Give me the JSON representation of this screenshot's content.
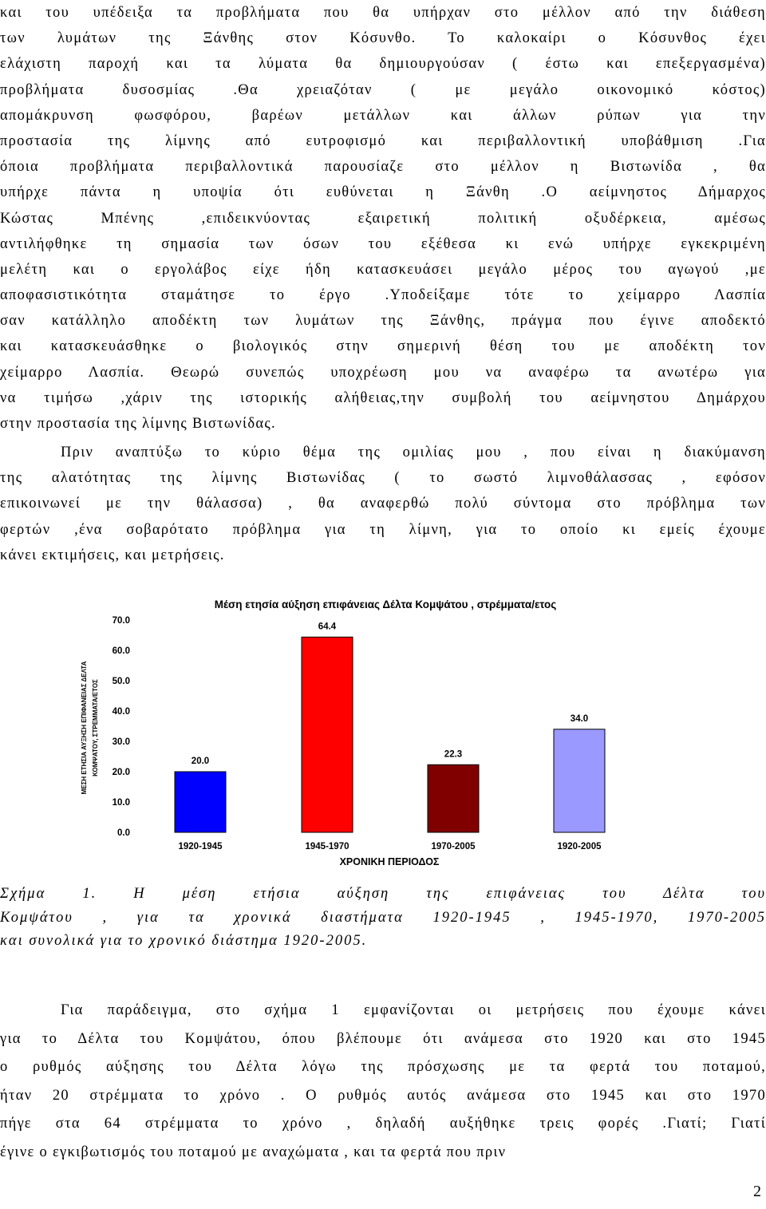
{
  "paragraph1": {
    "lines": [
      "και του υπέδειξα τα προβλήματα που θα υπήρχαν στο μέλλον  από την διάθεση",
      "των λυμάτων της Ξάνθης   στον Κόσυνθο. Το καλοκαίρι ο Κόσυνθος έχει",
      "ελάχιστη  παροχή και τα λύματα θα δημιουργούσαν ( έστω και επεξεργασμένα)",
      "προβλήματα δυσοσμίας .Θα χρειαζόταν   ( με μεγάλο οικονομικό κόστος)",
      "απομάκρυνση φωσφόρου, βαρέων μετάλλων και   άλλων ρύπων   για την",
      "προστασία της λίμνης από ευτροφισμό και περιβαλλοντική υποβάθμιση .Για",
      "όποια προβλήματα περιβαλλοντικά παρουσίαζε  στο μέλλον η Βιστωνίδα , θα",
      "υπήρχε πάντα   η υποψία ότι ευθύνεται   η Ξάνθη .Ο αείμνηστος Δήμαρχος",
      "Κώστας Μπένης ,επιδεικνύοντας εξαιρετική πολιτική οξυδέρκεια, αμέσως",
      "αντιλήφθηκε τη σημασία των όσων του εξέθεσα κι ενώ υπήρχε εγκεκριμένη",
      "μελέτη και  ο εργολάβος είχε ήδη κατασκευάσει μεγάλο μέρος  του αγωγού ,με",
      "αποφασιστικότητα   σταμάτησε το έργο .Υποδείξαμε τότε το χείμαρρο Λασπία",
      "σαν κατάλληλο αποδέκτη των λυμάτων της Ξάνθης, πράγμα που έγινε  αποδεκτό",
      "και κατασκευάσθηκε ο βιολογικός στην σημερινή   θέση   του με αποδέκτη τον",
      "χείμαρρο Λασπία. Θεωρώ συνεπώς υποχρέωση μου να αναφέρω  τα ανωτέρω για",
      "να τιμήσω ,χάριν της ιστορικής αλήθειας,την συμβολή του αείμνηστου Δημάρχου",
      "στην προστασία της λίμνης Βιστωνίδας."
    ]
  },
  "paragraph2": {
    "lines": [
      "Πριν αναπτύξω το κύριο θέμα της ομιλίας μου , που είναι η διακύμανση",
      "της αλατότητας της λίμνης  Βιστωνίδας  ( το σωστό λιμνοθάλασσας , εφόσον",
      "επικοινωνεί με την θάλασσα) , θα αναφερθώ πολύ σύντομα στο πρόβλημα των",
      "φερτών ,ένα σοβαρότατο πρόβλημα για τη λίμνη, για το οποίο κι εμείς έχουμε",
      "κάνει εκτιμήσεις, και μετρήσεις."
    ]
  },
  "chart_data": {
    "type": "bar",
    "title": "Μέση ετησία αύξηση επιφάνειας  Δέλτα  Κομψάτου  , στρέμματα/ετος",
    "xlabel": "ΧΡΟΝΙΚΗ ΠΕΡΙΟΔΟΣ",
    "ylabel_line1": "ΜΕΣΗ ΕΤΗΣΙΑ  ΑΥΞΗΣΗ ΕΠΙΦΑΝΕΙΑΣ  ΔΕΛΤΑ",
    "ylabel_line2": "ΚΟΜΨΑΤΟΥ, ΣΤΡΕΜΜΑΤΑ/ΕΤΟΣ",
    "categories": [
      "1920-1945",
      "1945-1970",
      "1970-2005",
      "1920-2005"
    ],
    "values": [
      20.0,
      64.4,
      22.3,
      34.0
    ],
    "value_labels": [
      "20.0",
      "64.4",
      "22.3",
      "34.0"
    ],
    "colors": [
      "#0000ff",
      "#ff0000",
      "#800000",
      "#9999ff"
    ],
    "ylim": [
      0,
      70
    ],
    "yticks": [
      "0.0",
      "10.0",
      "20.0",
      "30.0",
      "40.0",
      "50.0",
      "60.0",
      "70.0"
    ],
    "legend": "none",
    "grid": false
  },
  "caption": {
    "lines": [
      "Σχήμα 1. Η   μέση  ετήσια  αύξηση  της επιφάνειας   του  Δέλτα του",
      "Κομψάτου ,  για τα χρονικά διαστήματα  1920-1945 , 1945-1970,    1970-2005",
      "και συνολικά  για το  χρονικό διάστημα  1920-2005."
    ]
  },
  "paragraph3": {
    "lines": [
      "Για παράδειγμα, στο σχήμα 1 εμφανίζονται οι μετρήσεις που έχουμε κάνει",
      "για το Δέλτα του Κομψάτου, όπου βλέπουμε ότι ανάμεσα στο 1920 και στο 1945",
      "ο ρυθμός αύξησης του Δέλτα λόγω της πρόσχωσης με τα φερτά του ποταμού,",
      "ήταν 20 στρέμματα το χρόνο . Ο ρυθμός αυτός ανάμεσα στο 1945 και στο 1970",
      "πήγε στα 64 στρέμματα το χρόνο , δηλαδή αυξήθηκε τρεις φορές .Γιατί; Γιατί",
      "έγινε ο εγκιβωτισμός του ποταμού με  αναχώματα , και τα φερτά που πριν"
    ]
  },
  "page_number": "2"
}
